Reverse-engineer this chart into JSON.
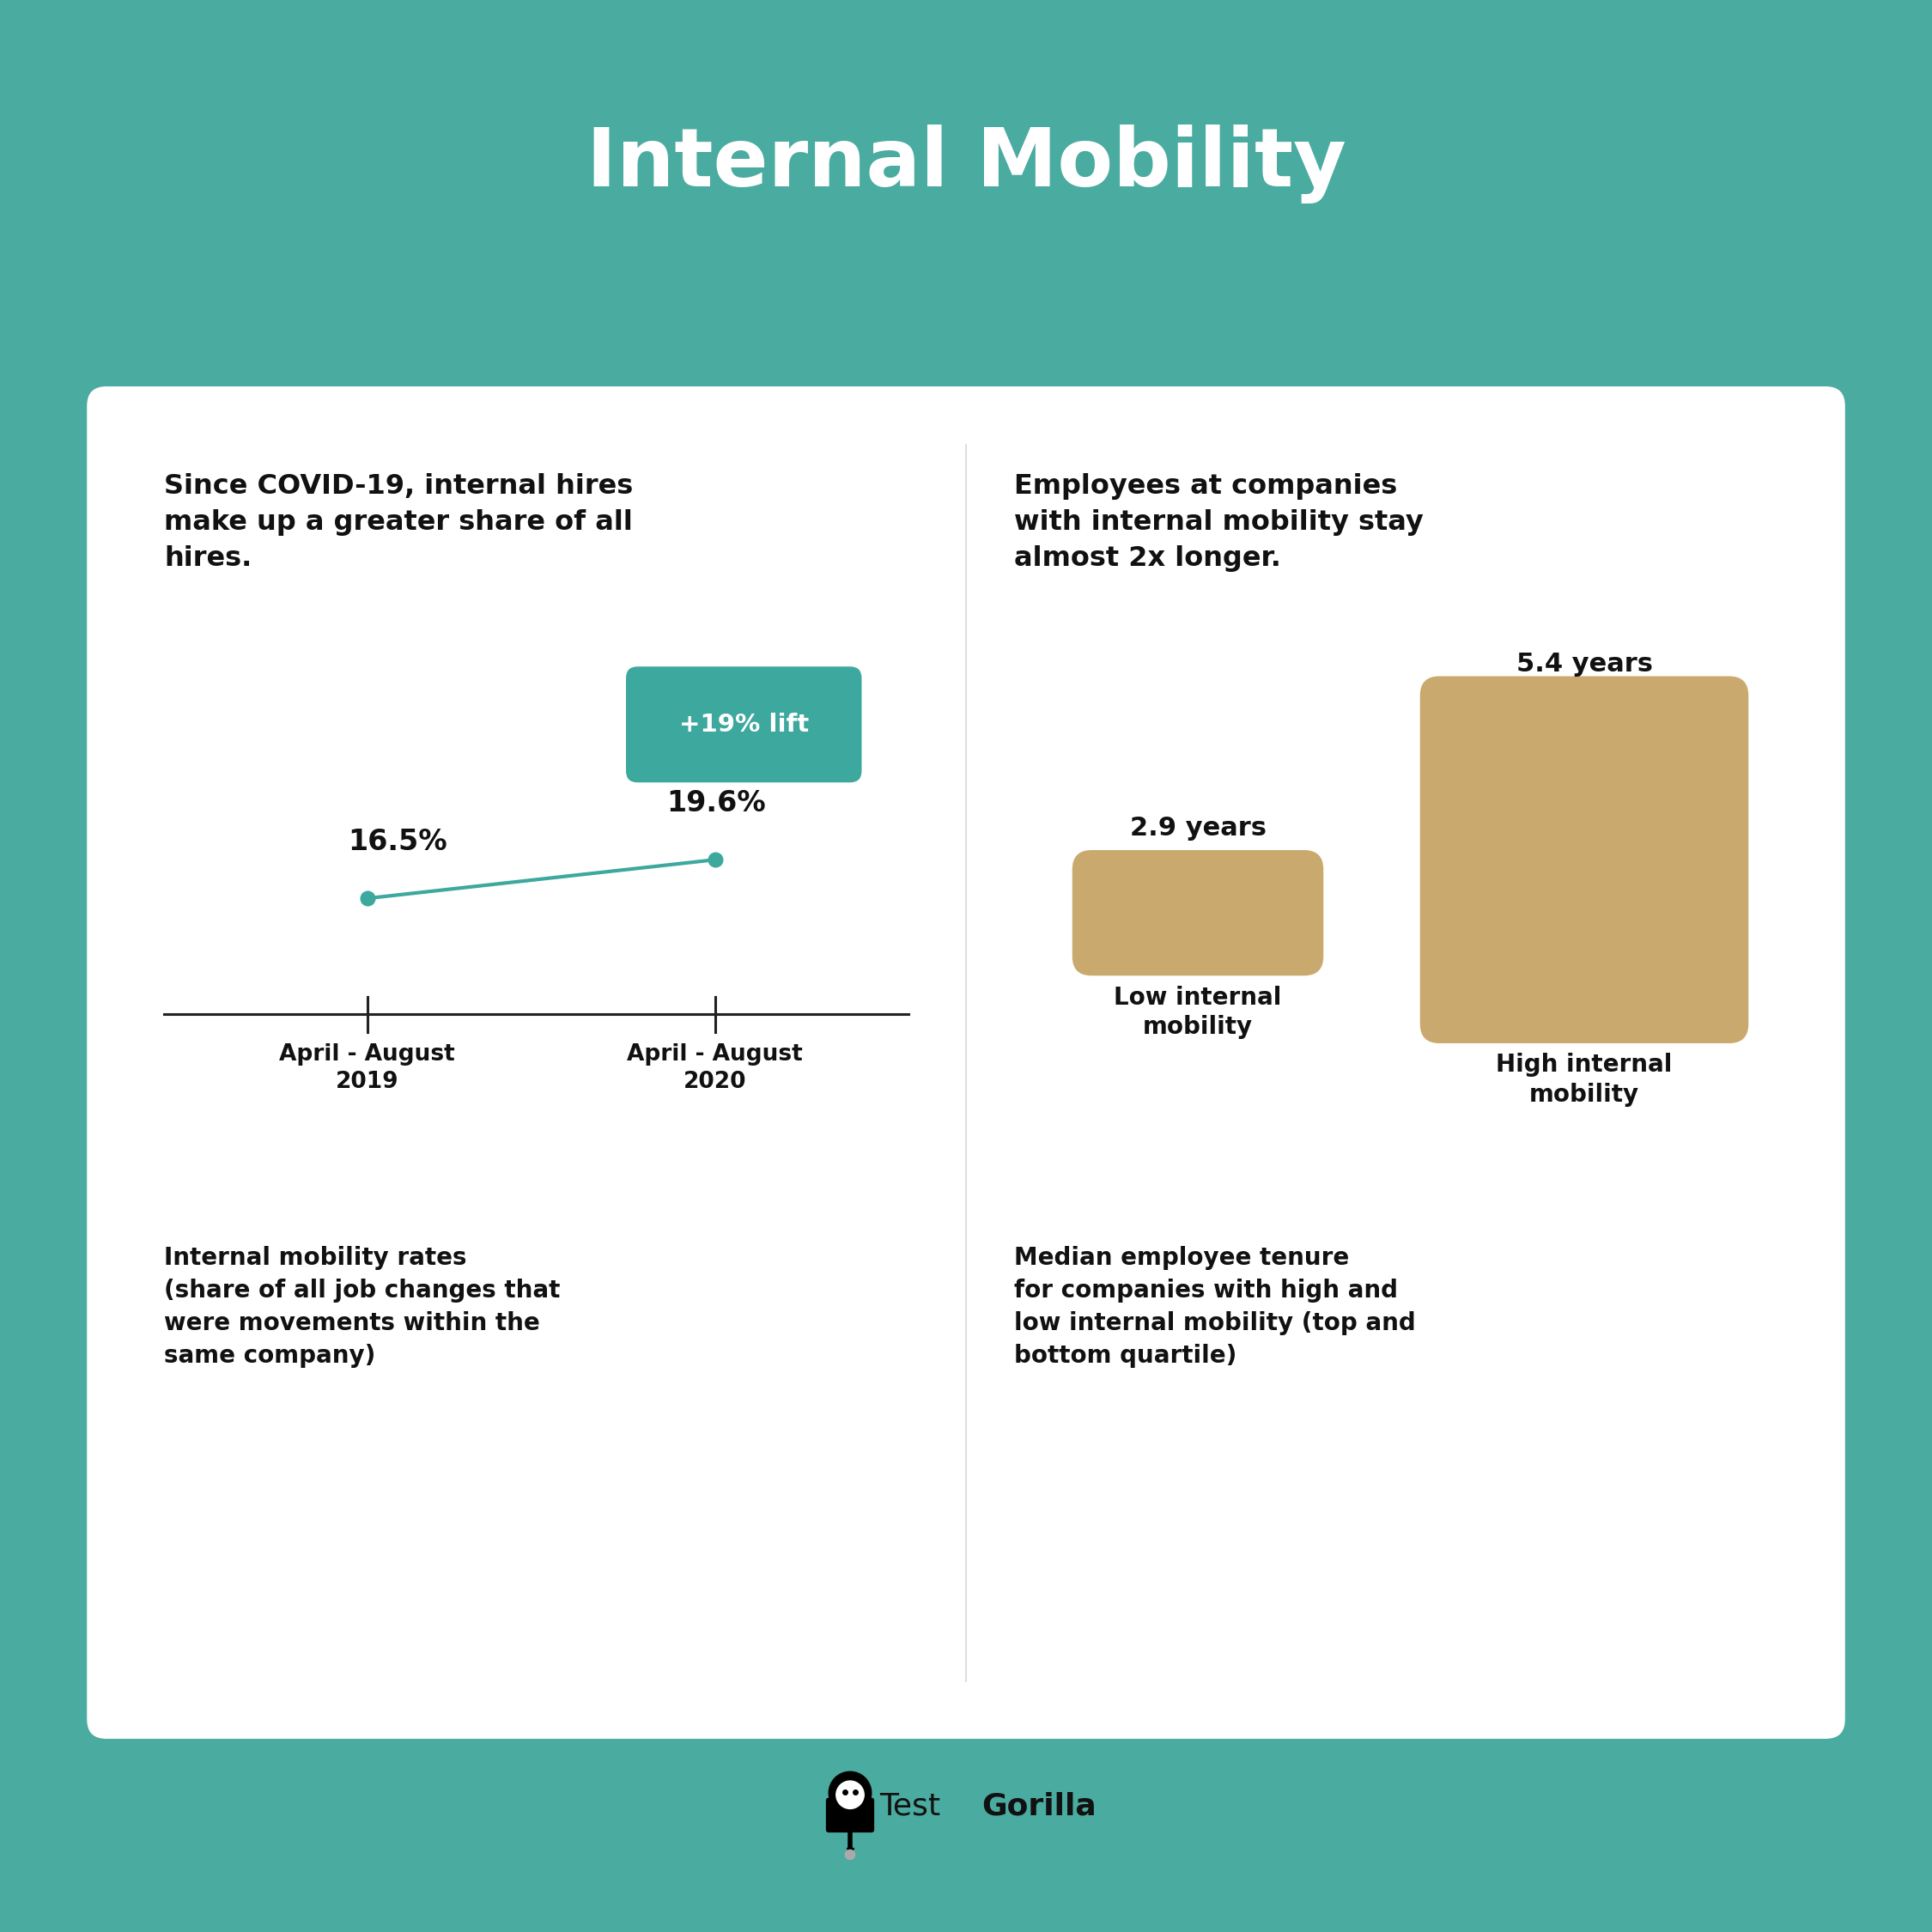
{
  "title": "Internal Mobility",
  "bg_color": "#4AABA0",
  "card_color": "#FFFFFF",
  "teal_color": "#3DA89E",
  "tan_color": "#C9A96E",
  "text_dark": "#111111",
  "left_subtitle": "Since COVID-19, internal hires\nmake up a greater share of all\nhires.",
  "right_subtitle": "Employees at companies\nwith internal mobility stay\nalmost 2x longer.",
  "left_value1": "16.5%",
  "left_value2": "19.6%",
  "left_label1": "April - August\n2019",
  "left_label2": "April - August\n2020",
  "lift_label": "+19% lift",
  "right_value1": "2.9 years",
  "right_value2": "5.4 years",
  "right_label1": "Low internal\nmobility",
  "right_label2": "High internal\nmobility",
  "bottom_left_text": "Internal mobility rates\n(share of all job changes that\nwere movements within the\nsame company)",
  "bottom_right_text": "Median employee tenure\nfor companies with high and\nlow internal mobility (top and\nbottom quartile)"
}
